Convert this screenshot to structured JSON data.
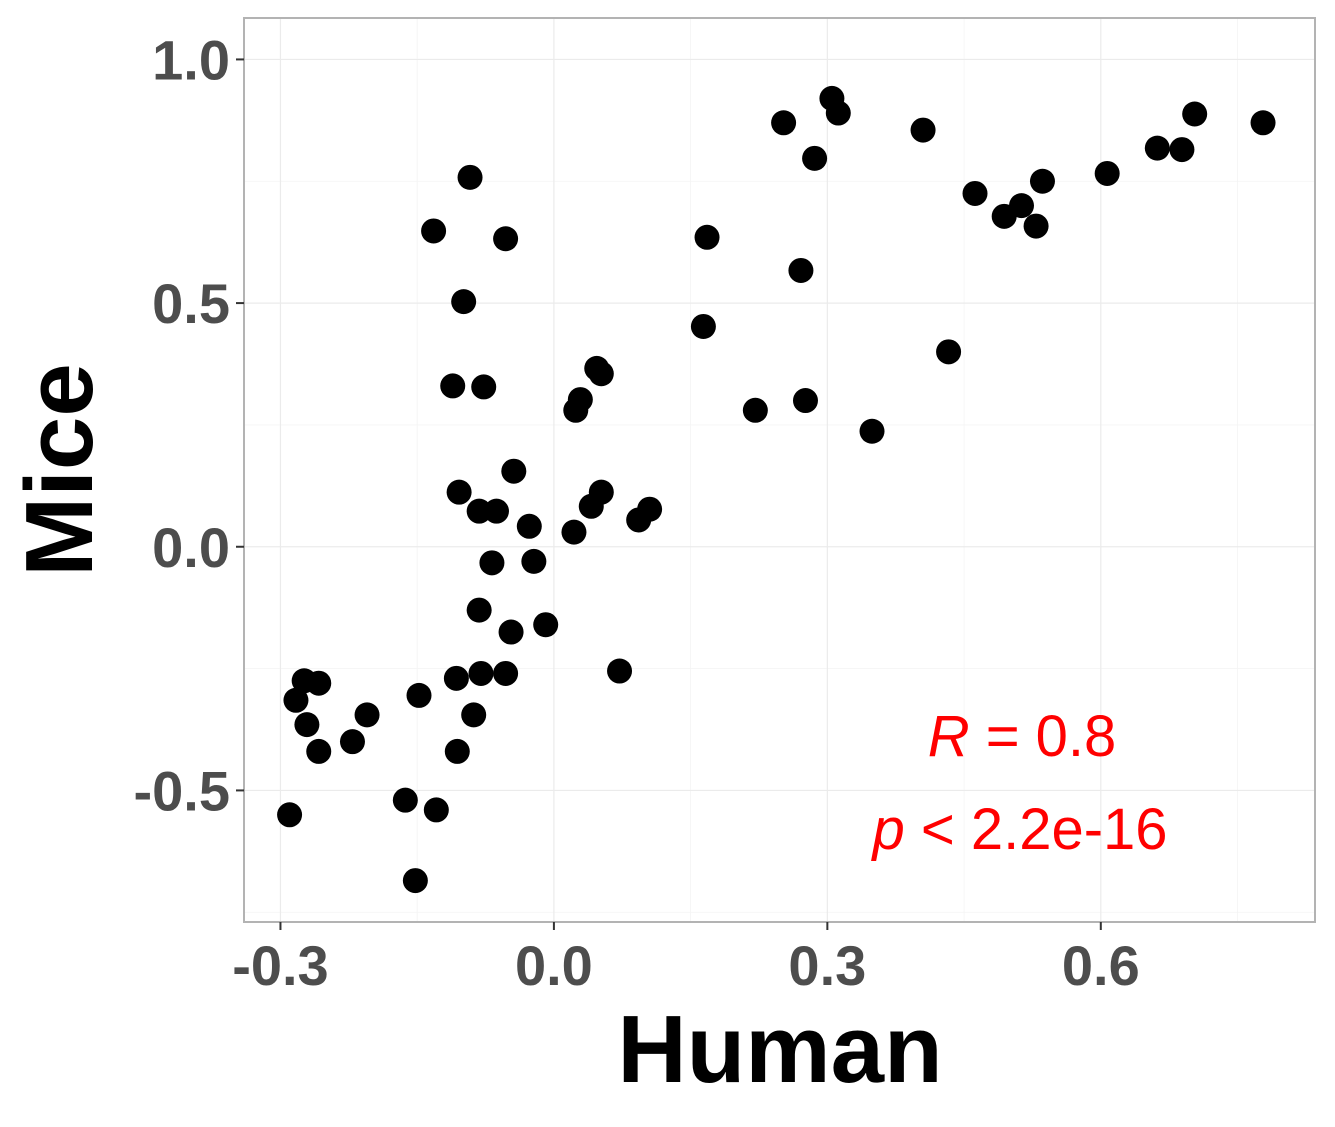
{
  "chart_data": {
    "type": "scatter",
    "xlabel": "Human",
    "ylabel": "Mice",
    "xlim": [
      -0.34,
      0.835
    ],
    "ylim": [
      -0.77,
      1.085
    ],
    "x_ticks": [
      -0.3,
      0.0,
      0.3,
      0.6
    ],
    "x_tick_labels": [
      "-0.3",
      "0.0",
      "0.3",
      "0.6"
    ],
    "y_ticks": [
      -0.5,
      0.0,
      0.5,
      1.0
    ],
    "y_tick_labels": [
      "-0.5",
      "0.0",
      "0.5",
      "1.0"
    ],
    "grid": true,
    "annotation": {
      "r_symbol": "R",
      "r_text": " = 0.8",
      "p_symbol": "p",
      "p_text": " < 2.2e-16",
      "color": "#ff0000"
    },
    "point_color": "#000000",
    "points": [
      [
        0.305,
        0.92
      ],
      [
        0.312,
        0.89
      ],
      [
        0.252,
        0.87
      ],
      [
        0.286,
        0.797
      ],
      [
        0.405,
        0.855
      ],
      [
        0.778,
        0.87
      ],
      [
        0.703,
        0.888
      ],
      [
        0.662,
        0.818
      ],
      [
        0.689,
        0.815
      ],
      [
        0.607,
        0.766
      ],
      [
        0.536,
        0.75
      ],
      [
        0.462,
        0.725
      ],
      [
        0.513,
        0.7
      ],
      [
        0.494,
        0.678
      ],
      [
        0.529,
        0.658
      ],
      [
        0.168,
        0.635
      ],
      [
        0.271,
        0.567
      ],
      [
        0.164,
        0.452
      ],
      [
        0.433,
        0.4
      ],
      [
        0.221,
        0.28
      ],
      [
        0.276,
        0.3
      ],
      [
        0.349,
        0.237
      ],
      [
        -0.092,
        0.758
      ],
      [
        -0.132,
        0.648
      ],
      [
        -0.053,
        0.632
      ],
      [
        -0.099,
        0.503
      ],
      [
        -0.111,
        0.33
      ],
      [
        -0.077,
        0.328
      ],
      [
        0.047,
        0.366
      ],
      [
        0.052,
        0.355
      ],
      [
        0.029,
        0.302
      ],
      [
        0.024,
        0.28
      ],
      [
        -0.044,
        0.155
      ],
      [
        -0.104,
        0.112
      ],
      [
        -0.082,
        0.073
      ],
      [
        -0.063,
        0.073
      ],
      [
        -0.027,
        0.042
      ],
      [
        0.052,
        0.112
      ],
      [
        0.041,
        0.083
      ],
      [
        0.022,
        0.03
      ],
      [
        0.093,
        0.055
      ],
      [
        0.105,
        0.077
      ],
      [
        -0.068,
        -0.033
      ],
      [
        -0.022,
        -0.03
      ],
      [
        -0.082,
        -0.13
      ],
      [
        -0.047,
        -0.175
      ],
      [
        -0.009,
        -0.16
      ],
      [
        -0.107,
        -0.27
      ],
      [
        -0.08,
        -0.26
      ],
      [
        -0.053,
        -0.26
      ],
      [
        0.072,
        -0.255
      ],
      [
        -0.148,
        -0.305
      ],
      [
        -0.088,
        -0.345
      ],
      [
        -0.106,
        -0.42
      ],
      [
        -0.274,
        -0.275
      ],
      [
        -0.258,
        -0.28
      ],
      [
        -0.283,
        -0.315
      ],
      [
        -0.271,
        -0.365
      ],
      [
        -0.258,
        -0.42
      ],
      [
        -0.205,
        -0.345
      ],
      [
        -0.221,
        -0.4
      ],
      [
        -0.163,
        -0.52
      ],
      [
        -0.129,
        -0.54
      ],
      [
        -0.29,
        -0.55
      ],
      [
        -0.152,
        -0.685
      ]
    ]
  }
}
